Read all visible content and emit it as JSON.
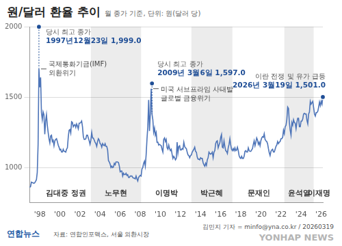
{
  "chart_data": {
    "type": "line",
    "title": "원/달러 환율 추이",
    "subtitle": "월 종가 기준, 단위: 원(달러 당)",
    "categories": [
      null,
      null,
      null,
      null,
      null,
      null,
      null,
      null,
      null,
      null,
      null,
      null,
      "'98",
      null,
      null,
      null,
      null,
      null,
      null,
      null,
      null,
      null,
      null,
      null,
      null,
      null,
      null,
      null,
      null,
      null,
      null,
      null,
      null,
      null,
      null,
      null,
      "'00",
      null,
      null,
      null,
      null,
      null,
      null,
      null,
      null,
      null,
      null,
      null,
      null,
      null,
      null,
      null,
      null,
      null,
      null,
      null,
      null,
      null,
      null,
      null,
      "'02",
      null,
      null,
      null,
      null,
      null,
      null,
      null,
      null,
      null,
      null,
      null,
      null,
      null,
      null,
      null,
      null,
      null,
      null,
      null,
      null,
      null,
      null,
      null,
      "'04",
      null,
      null,
      null,
      null,
      null,
      null,
      null,
      null,
      null,
      null,
      null,
      null,
      null,
      null,
      null,
      null,
      null,
      null,
      null,
      null,
      null,
      null,
      null,
      "'06",
      null,
      null,
      null,
      null,
      null,
      null,
      null,
      null,
      null,
      null,
      null,
      null,
      null,
      null,
      null,
      null,
      null,
      null,
      null,
      null,
      null,
      null,
      null,
      "'08",
      null,
      null,
      null,
      null,
      null,
      null,
      null,
      null,
      null,
      null,
      null,
      null,
      null,
      null,
      null,
      null,
      null,
      null,
      null,
      null,
      null,
      null,
      null,
      "'10",
      null,
      null,
      null,
      null,
      null,
      null,
      null,
      null,
      null,
      null,
      null,
      null,
      null,
      null,
      null,
      null,
      null,
      null,
      null,
      null,
      null,
      null,
      null,
      "'12",
      null,
      null,
      null,
      null,
      null,
      null,
      null,
      null,
      null,
      null,
      null,
      null,
      null,
      null,
      null,
      null,
      null,
      null,
      null,
      null,
      null,
      null,
      null,
      "'14",
      null,
      null,
      null,
      null,
      null,
      null,
      null,
      null,
      null,
      null,
      null,
      null,
      null,
      null,
      null,
      null,
      null,
      null,
      null,
      null,
      null,
      null,
      null,
      "'16",
      null,
      null,
      null,
      null,
      null,
      null,
      null,
      null,
      null,
      null,
      null,
      null,
      null,
      null,
      null,
      null,
      null,
      null,
      null,
      null,
      null,
      null,
      null,
      "'18",
      null,
      null,
      null,
      null,
      null,
      null,
      null,
      null,
      null,
      null,
      null,
      null,
      null,
      null,
      null,
      null,
      null,
      null,
      null,
      null,
      null,
      null,
      null,
      "'20",
      null,
      null,
      null,
      null,
      null,
      null,
      null,
      null,
      null,
      null,
      null,
      null,
      null,
      null,
      null,
      null,
      null,
      null,
      null,
      null,
      null,
      null,
      null,
      "'22",
      null,
      null,
      null,
      null,
      null,
      null,
      null,
      null,
      null,
      null,
      null,
      null,
      null,
      null,
      null,
      null,
      null,
      null,
      null,
      null,
      null,
      null,
      null,
      "'24",
      null,
      null,
      null,
      null,
      null,
      null,
      null,
      null,
      null,
      null,
      null,
      null,
      null,
      null,
      null,
      null,
      null,
      null,
      null,
      null,
      null,
      null,
      null,
      "'26",
      null,
      null
    ],
    "values": [
      860,
      865,
      897,
      893,
      892,
      888,
      892,
      902,
      914,
      965,
      1163,
      1700,
      1570,
      1640,
      1390,
      1340,
      1395,
      1375,
      1236,
      1330,
      1375,
      1300,
      1250,
      1205,
      1175,
      1225,
      1230,
      1185,
      1195,
      1155,
      1190,
      1200,
      1205,
      1185,
      1160,
      1145,
      1125,
      1130,
      1110,
      1110,
      1130,
      1115,
      1115,
      1110,
      1130,
      1140,
      1215,
      1265,
      1270,
      1245,
      1325,
      1320,
      1290,
      1300,
      1305,
      1285,
      1310,
      1295,
      1275,
      1315,
      1315,
      1320,
      1330,
      1290,
      1220,
      1200,
      1200,
      1205,
      1230,
      1230,
      1210,
      1190,
      1165,
      1195,
      1250,
      1210,
      1210,
      1195,
      1180,
      1170,
      1150,
      1185,
      1205,
      1195,
      1170,
      1165,
      1145,
      1170,
      1160,
      1155,
      1170,
      1150,
      1150,
      1125,
      1050,
      1040,
      1025,
      1000,
      1010,
      1000,
      1005,
      1030,
      1020,
      1040,
      1040,
      1040,
      1035,
      1010,
      970,
      975,
      975,
      940,
      960,
      950,
      950,
      960,
      945,
      950,
      930,
      930,
      940,
      940,
      940,
      930,
      925,
      925,
      920,
      940,
      920,
      905,
      930,
      938,
      945,
      940,
      990,
      1000,
      1030,
      1045,
      1010,
      1090,
      1200,
      1290,
      1480,
      1260,
      1380,
      1560,
      1380,
      1340,
      1250,
      1280,
      1230,
      1250,
      1180,
      1180,
      1160,
      1165,
      1160,
      1155,
      1130,
      1110,
      1200,
      1210,
      1185,
      1200,
      1140,
      1130,
      1160,
      1135,
      1120,
      1130,
      1095,
      1065,
      1080,
      1070,
      1055,
      1065,
      1180,
      1105,
      1150,
      1155,
      1125,
      1125,
      1135,
      1130,
      1180,
      1150,
      1140,
      1135,
      1110,
      1090,
      1085,
      1070,
      1085,
      1090,
      1110,
      1120,
      1130,
      1145,
      1115,
      1110,
      1075,
      1060,
      1060,
      1055,
      1070,
      1065,
      1065,
      1035,
      1020,
      1010,
      1030,
      1015,
      1055,
      1070,
      1110,
      1100,
      1095,
      1100,
      1110,
      1070,
      1110,
      1120,
      1170,
      1185,
      1190,
      1140,
      1160,
      1175,
      1215,
      1235,
      1145,
      1140,
      1190,
      1150,
      1120,
      1115,
      1100,
      1140,
      1165,
      1205,
      1160,
      1130,
      1120,
      1135,
      1120,
      1140,
      1120,
      1125,
      1145,
      1120,
      1085,
      1070,
      1065,
      1080,
      1065,
      1065,
      1080,
      1115,
      1120,
      1110,
      1110,
      1140,
      1120,
      1115,
      1115,
      1125,
      1135,
      1165,
      1190,
      1155,
      1180,
      1210,
      1195,
      1165,
      1180,
      1155,
      1190,
      1210,
      1220,
      1215,
      1240,
      1200,
      1190,
      1185,
      1170,
      1135,
      1105,
      1085,
      1115,
      1125,
      1130,
      1110,
      1110,
      1130,
      1150,
      1160,
      1185,
      1170,
      1180,
      1185,
      1205,
      1205,
      1215,
      1265,
      1240,
      1290,
      1300,
      1340,
      1430,
      1420,
      1320,
      1265,
      1230,
      1320,
      1300,
      1340,
      1320,
      1315,
      1275,
      1320,
      1350,
      1350,
      1290,
      1290,
      1330,
      1330,
      1345,
      1380,
      1385,
      1380,
      1380,
      1335,
      1310,
      1380,
      1395,
      1470,
      1450,
      1460,
      1470,
      1425,
      1380,
      1365,
      1390,
      1390,
      1400,
      1430,
      1465,
      1440,
      1470,
      1450,
      1501
    ],
    "color": "#4d74b8",
    "ylim": [
      750,
      2000
    ],
    "yticks": [
      1000,
      1500,
      2000
    ],
    "grid": true,
    "annotations": [
      {
        "at": 11,
        "value": 1999.0,
        "texts": [
          "당시 최고 종가",
          "1997년12월23일 1,999.0"
        ]
      },
      {
        "at": 11,
        "texts": [
          "국제통화기금(IMF)",
          "외환위기"
        ]
      },
      {
        "at": 146,
        "value": 1597.0,
        "texts": [
          "당시 최고 종가",
          "2009년 3월6일 1,597.0"
        ]
      },
      {
        "at": 145,
        "texts": [
          "미국 서브프라임 사태발",
          "글로벌 금융위기"
        ]
      },
      {
        "at": 350,
        "value": 1501.0,
        "texts": [
          "이란 전쟁 및 유가 급등",
          "2026년 3월19일 1,501.0"
        ]
      }
    ],
    "periods": [
      {
        "label": "김대중 정권",
        "start": 13,
        "end": 73,
        "shaded": false
      },
      {
        "label": "노무현",
        "start": 73,
        "end": 133,
        "shaded": true
      },
      {
        "label": "이명박",
        "start": 133,
        "end": 193,
        "shaded": false
      },
      {
        "label": "박근혜",
        "start": 193,
        "end": 242,
        "shaded": true
      },
      {
        "label": "문재인",
        "start": 244,
        "end": 304,
        "shaded": false
      },
      {
        "label": "윤석열",
        "start": 304,
        "end": 339,
        "shaded": true
      },
      {
        "label": "이재명",
        "start": 341,
        "end": 350,
        "shaded": false
      }
    ],
    "logo": "연합뉴스",
    "source": "자료: 연합인포맥스, 서울 외환시장",
    "credit": "김민지 기자 = minfo@yna.co.kr / 20260319",
    "watermark": "YONHAP NEWS"
  }
}
